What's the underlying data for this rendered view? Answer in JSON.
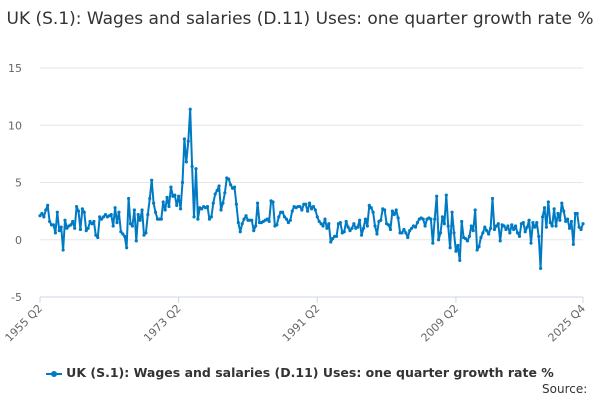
{
  "chart_data": {
    "type": "line",
    "title": "UK (S.1): Wages and salaries (D.11) Uses: one quarter growth rate %",
    "xlabel": "",
    "ylabel": "",
    "ylim": [
      -5,
      15
    ],
    "yticks": [
      -5,
      0,
      5,
      10,
      15
    ],
    "xtick_labels": [
      "1955 Q2",
      "1973 Q2",
      "1991 Q2",
      "2009 Q2",
      "2025 Q4"
    ],
    "grid": "horizontal",
    "legend_position": "bottom",
    "color": "#007ac3",
    "first_period": "1955 Q2",
    "last_period": "2025 Q4",
    "series": [
      {
        "name": "UK (S.1): Wages and salaries (D.11) Uses: one quarter growth rate %",
        "values": [
          2.1,
          2.3,
          2.0,
          2.6,
          3.0,
          1.6,
          1.3,
          1.3,
          0.6,
          2.4,
          0.8,
          1.1,
          -0.9,
          1.7,
          1.0,
          1.2,
          1.3,
          1.6,
          1.0,
          2.9,
          2.5,
          0.9,
          2.7,
          2.4,
          0.8,
          1.0,
          1.6,
          1.4,
          1.6,
          0.4,
          0.2,
          2.0,
          1.8,
          2.0,
          2.2,
          2.0,
          2.1,
          2.2,
          1.2,
          2.8,
          1.5,
          2.4,
          0.7,
          0.5,
          0.3,
          -0.7,
          3.6,
          1.4,
          1.2,
          2.6,
          -0.1,
          2.2,
          1.7,
          2.6,
          0.4,
          0.6,
          2.2,
          3.6,
          5.2,
          3.2,
          2.4,
          1.8,
          1.8,
          1.8,
          3.3,
          2.6,
          3.7,
          2.9,
          4.6,
          3.8,
          3.9,
          3.0,
          3.8,
          2.7,
          5.0,
          8.8,
          6.8,
          8.6,
          11.4,
          6.4,
          2.0,
          6.2,
          1.8,
          2.8,
          2.7,
          2.9,
          2.8,
          2.9,
          1.8,
          2.0,
          3.2,
          4.0,
          4.3,
          4.7,
          2.6,
          3.2,
          4.1,
          5.4,
          5.3,
          4.8,
          4.5,
          4.6,
          3.1,
          1.5,
          0.7,
          1.4,
          1.8,
          2.1,
          1.7,
          1.7,
          1.7,
          0.8,
          1.2,
          3.2,
          1.5,
          1.5,
          1.6,
          1.7,
          1.8,
          1.6,
          3.4,
          3.3,
          1.2,
          1.3,
          2.0,
          2.4,
          2.4,
          2.0,
          1.8,
          1.5,
          1.7,
          2.5,
          2.9,
          2.8,
          2.9,
          2.9,
          2.6,
          3.1,
          3.1,
          2.5,
          3.2,
          2.7,
          2.9,
          2.6,
          2.0,
          1.6,
          1.4,
          1.2,
          1.8,
          1.0,
          1.4,
          -0.2,
          0.1,
          0.3,
          0.3,
          1.4,
          1.5,
          0.6,
          0.7,
          1.6,
          1.1,
          0.8,
          1.0,
          1.4,
          1.0,
          1.1,
          1.7,
          0.4,
          1.0,
          1.8,
          1.2,
          3.0,
          2.8,
          2.4,
          1.2,
          0.5,
          1.6,
          1.7,
          2.7,
          2.6,
          1.4,
          1.3,
          0.9,
          2.5,
          2.2,
          2.6,
          1.9,
          0.6,
          0.6,
          0.9,
          0.6,
          0.2,
          0.8,
          1.0,
          1.2,
          1.1,
          1.5,
          1.8,
          1.9,
          1.8,
          1.2,
          1.8,
          1.9,
          1.8,
          -0.3,
          1.8,
          3.8,
          0.0,
          0.6,
          2.0,
          1.4,
          3.9,
          1.2,
          -0.7,
          2.4,
          0.6,
          -1.0,
          -0.5,
          -1.8,
          1.6,
          0.2,
          0.1,
          -0.1,
          0.3,
          1.2,
          0.8,
          2.6,
          -0.9,
          -0.6,
          0.2,
          0.6,
          1.1,
          0.8,
          0.5,
          1.0,
          3.6,
          0.9,
          1.2,
          1.4,
          -0.1,
          1.3,
          1.2,
          0.9,
          1.2,
          0.6,
          1.3,
          0.9,
          1.2,
          0.6,
          0.3,
          1.4,
          1.5,
          0.7,
          1.1,
          1.7,
          -0.3,
          1.5,
          1.1,
          1.5,
          0.3,
          -2.5,
          2.0,
          2.8,
          1.1,
          3.3,
          1.5,
          1.2,
          2.7,
          1.2,
          2.3,
          1.7,
          3.2,
          2.5,
          1.6,
          1.8,
          1.0,
          1.6,
          -0.4,
          2.3,
          2.3,
          1.1,
          0.9,
          1.4
        ]
      }
    ]
  },
  "legend": {
    "label": "UK (S.1): Wages and salaries (D.11) Uses: one quarter growth rate %"
  },
  "source": {
    "label": "Source:"
  }
}
